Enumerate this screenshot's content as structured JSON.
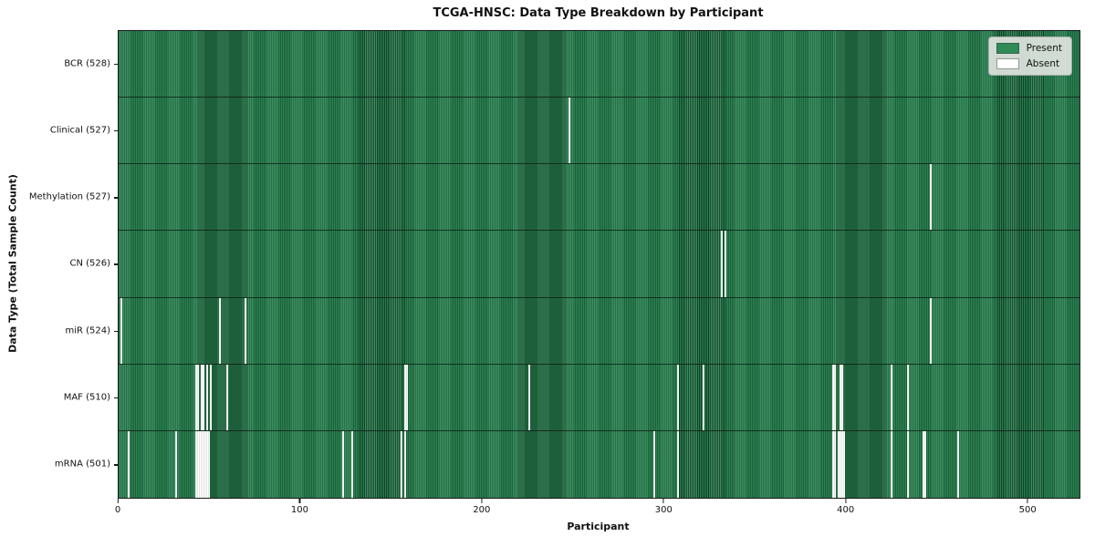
{
  "title": "TCGA-HNSC: Data Type Breakdown by Participant",
  "chart_data": {
    "type": "heatmap",
    "title": "TCGA-HNSC: Data Type Breakdown by Participant",
    "xlabel": "Participant",
    "ylabel": "Data Type (Total Sample Count)",
    "x_ticks": [
      0,
      100,
      200,
      300,
      400,
      500
    ],
    "x_range": [
      0,
      528
    ],
    "total_participants": 528,
    "grid": false,
    "legend_position": "upper right",
    "legend": [
      {
        "label": "Present",
        "color": "#2e8b57"
      },
      {
        "label": "Absent",
        "color": "#ffffff"
      }
    ],
    "colors": {
      "present": "#2e8b57",
      "absent": "#ffffff",
      "cell_edge": "#16402a"
    },
    "rows": [
      {
        "label": "BCR (528)",
        "data_type": "BCR",
        "present_count": 528,
        "absent_count": 0,
        "absent_participants": []
      },
      {
        "label": "Clinical (527)",
        "data_type": "Clinical",
        "present_count": 527,
        "absent_count": 1,
        "absent_participants": [
          247
        ]
      },
      {
        "label": "Methylation (527)",
        "data_type": "Methylation",
        "present_count": 527,
        "absent_count": 1,
        "absent_participants": [
          446
        ]
      },
      {
        "label": "CN (526)",
        "data_type": "CN",
        "present_count": 526,
        "absent_count": 2,
        "absent_participants": [
          331,
          333
        ]
      },
      {
        "label": "miR (524)",
        "data_type": "miR",
        "present_count": 524,
        "absent_count": 4,
        "absent_participants": [
          1,
          55,
          69,
          446
        ]
      },
      {
        "label": "MAF (510)",
        "data_type": "MAF",
        "present_count": 510,
        "absent_count": 18,
        "absent_participants": [
          42,
          43,
          45,
          46,
          48,
          50,
          59,
          157,
          158,
          225,
          307,
          321,
          392,
          393,
          396,
          397,
          424,
          433
        ]
      },
      {
        "label": "mRNA (501)",
        "data_type": "mRNA",
        "present_count": 501,
        "absent_count": 27,
        "absent_participants": [
          5,
          31,
          42,
          43,
          44,
          45,
          46,
          47,
          48,
          49,
          123,
          128,
          155,
          157,
          294,
          307,
          392,
          393,
          395,
          396,
          397,
          398,
          424,
          433,
          442,
          443,
          461
        ]
      }
    ]
  }
}
